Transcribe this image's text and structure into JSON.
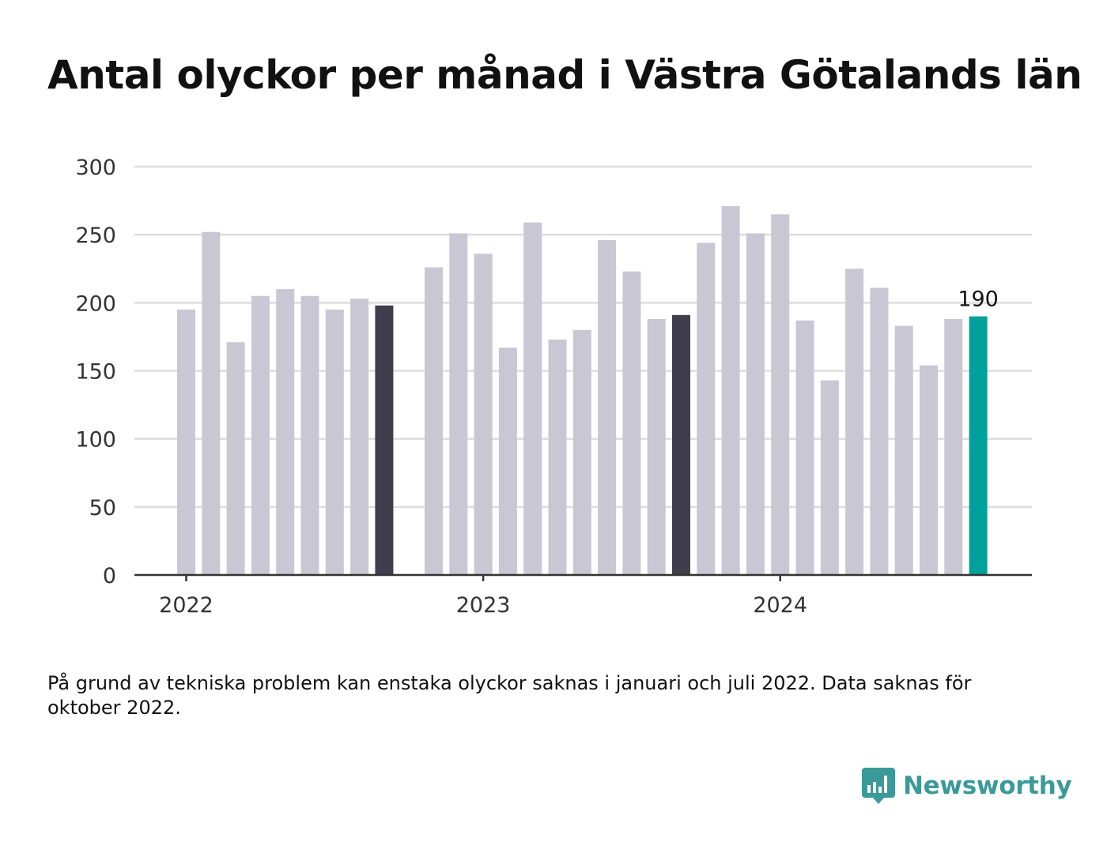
{
  "chart_data": {
    "type": "bar",
    "title": "Antal olyckor per månad i Västra Götalands län",
    "x": [
      "2022-01",
      "2022-02",
      "2022-03",
      "2022-04",
      "2022-05",
      "2022-06",
      "2022-07",
      "2022-08",
      "2022-09",
      "2022-10",
      "2022-11",
      "2022-12",
      "2023-01",
      "2023-02",
      "2023-03",
      "2023-04",
      "2023-05",
      "2023-06",
      "2023-07",
      "2023-08",
      "2023-09",
      "2023-10",
      "2023-11",
      "2023-12",
      "2024-01",
      "2024-02",
      "2024-03",
      "2024-04",
      "2024-05",
      "2024-06",
      "2024-07",
      "2024-08",
      "2024-09",
      "2024-10"
    ],
    "values": [
      195,
      252,
      171,
      205,
      210,
      205,
      195,
      203,
      198,
      null,
      226,
      251,
      236,
      167,
      259,
      173,
      180,
      246,
      223,
      188,
      191,
      244,
      271,
      251,
      265,
      187,
      143,
      225,
      211,
      183,
      154,
      188,
      190,
      null
    ],
    "highlighted": {
      "2022-09": "#403e4d",
      "2023-09": "#403e4d",
      "2024-09": "#00a19a"
    },
    "default_color": "#c8c7d3",
    "value_label": {
      "index": 32,
      "text": "190"
    },
    "yticks": [
      "0",
      "50",
      "100",
      "150",
      "200",
      "250",
      "300"
    ],
    "ylim": [
      0,
      300
    ],
    "xticks": [
      {
        "label": "2022",
        "index": 0
      },
      {
        "label": "2023",
        "index": 12
      },
      {
        "label": "2024",
        "index": 24
      }
    ],
    "grid": true,
    "xlabel": "",
    "ylabel": ""
  },
  "note": "På grund av tekniska problem kan enstaka olyckor saknas i januari och juli 2022. Data saknas för oktober 2022.",
  "brand": {
    "name": "Newsworthy",
    "icon": "newsworthy-logo-icon",
    "color": "#3a9a99"
  }
}
